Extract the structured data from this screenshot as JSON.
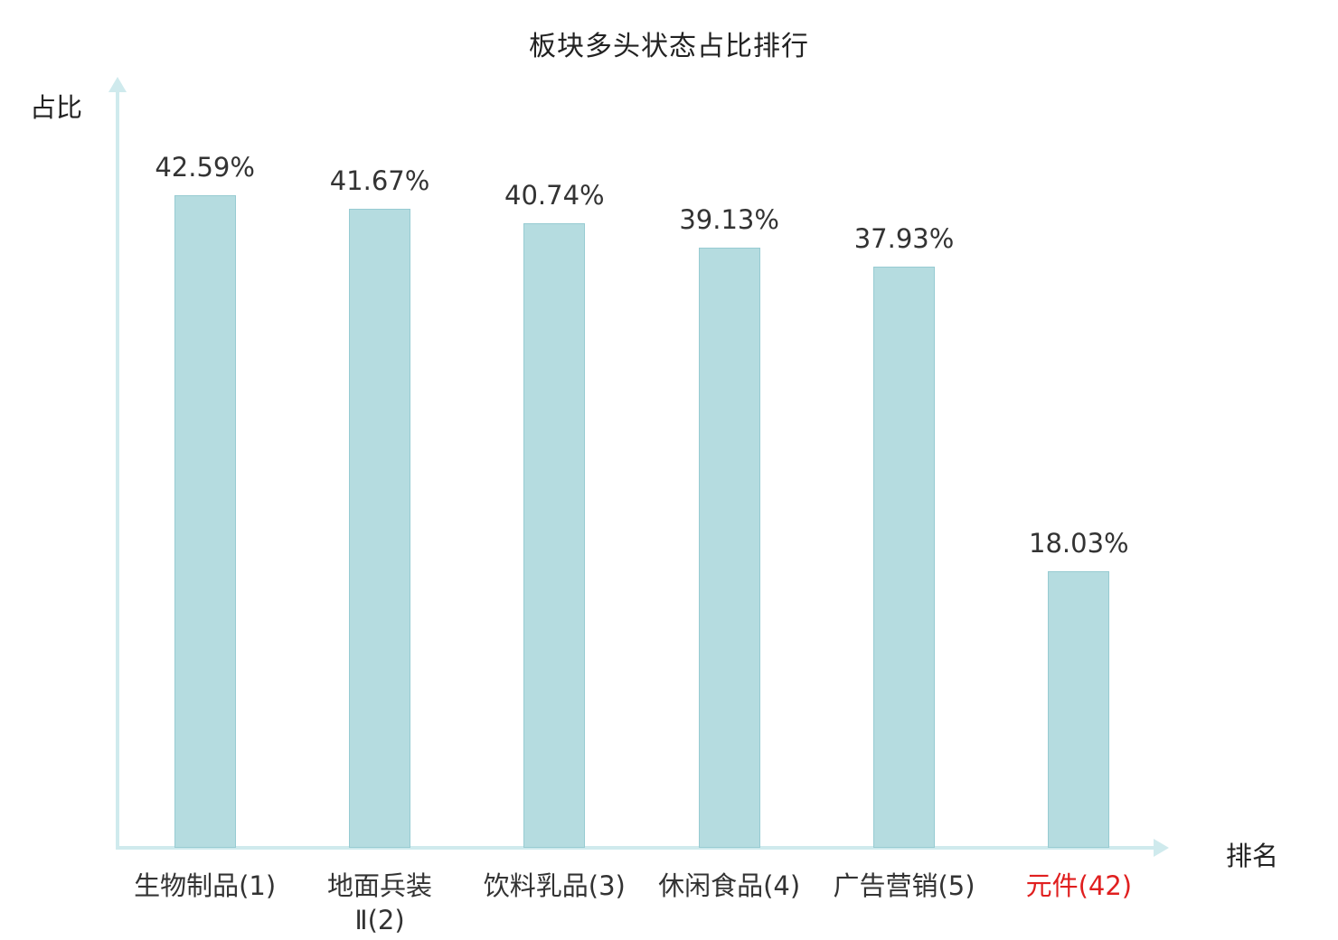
{
  "title": "板块多头状态占比排行",
  "y_axis_label": "占比",
  "x_axis_label": "排名",
  "colors": {
    "bar_fill": "#b5dce0",
    "bar_border": "#97cbd2",
    "axis": "#cfeaed",
    "text": "#333333",
    "highlight_red": "#e01f1f"
  },
  "chart_data": {
    "type": "bar",
    "title": "板块多头状态占比排行",
    "xlabel": "排名",
    "ylabel": "占比",
    "ylim": [
      0,
      50
    ],
    "grid": false,
    "legend": false,
    "categories": [
      "生物制品(1)",
      "地面兵装\nⅡ(2)",
      "饮料乳品(3)",
      "休闲食品(4)",
      "广告营销(5)",
      "元件(42)"
    ],
    "values": [
      42.59,
      41.67,
      40.74,
      39.13,
      37.93,
      18.03
    ],
    "value_labels": [
      "42.59%",
      "41.67%",
      "40.74%",
      "39.13%",
      "37.93%",
      "18.03%"
    ],
    "category_label_colors": [
      "#333333",
      "#333333",
      "#333333",
      "#333333",
      "#333333",
      "#e01f1f"
    ]
  }
}
